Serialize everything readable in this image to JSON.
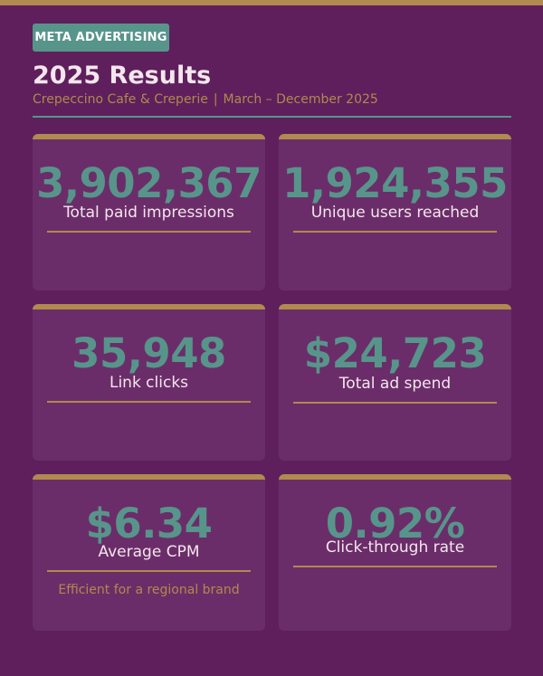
{
  "header": {
    "badge": "META ADVERTISING",
    "title": "2025 Results",
    "client": "Crepeccino Cafe & Creperie",
    "separator": "|",
    "period": "March – December 2025"
  },
  "colors": {
    "background": "#5e1f5c",
    "card": "#6b2d69",
    "accent_gold": "#b08a4e",
    "accent_teal": "#57958b",
    "text_light": "#f3e6ec"
  },
  "metrics": [
    {
      "value": "3,902,367",
      "label": "Total paid impressions",
      "note": ""
    },
    {
      "value": "1,924,355",
      "label": "Unique users reached",
      "note": ""
    },
    {
      "value": "35,948",
      "label": "Link clicks",
      "note": ""
    },
    {
      "value": "$24,723",
      "label": "Total ad spend",
      "note": ""
    },
    {
      "value": "$6.34",
      "label": "Average CPM",
      "note": "Efficient for a regional brand"
    },
    {
      "value": "0.92%",
      "label": "Click-through rate",
      "note": ""
    }
  ]
}
